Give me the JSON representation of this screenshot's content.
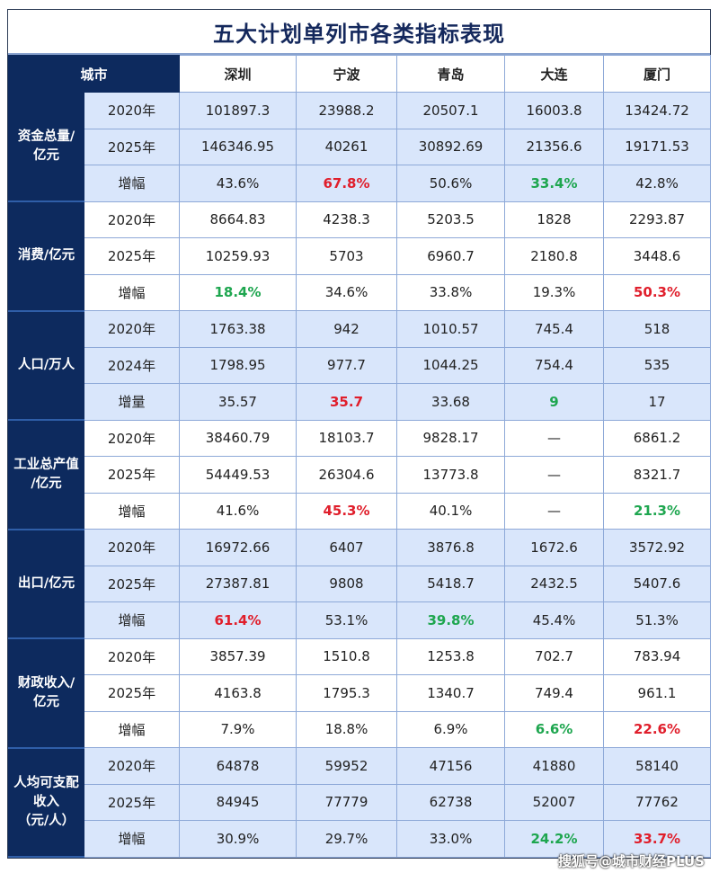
{
  "title": "五大计划单列市各类指标表现",
  "header": {
    "city_label": "城市",
    "cities": [
      "深圳",
      "宁波",
      "青岛",
      "大连",
      "厦门"
    ]
  },
  "colors": {
    "category_bg": "#0d2a5e",
    "band_blue": "#d9e6fb",
    "highlight_red": "#e01e2b",
    "highlight_green": "#1ea64f"
  },
  "groups": [
    {
      "label": "资金总量/\n亿元",
      "rows": [
        {
          "label": "2020年",
          "values": [
            "101897.3",
            "23988.2",
            "20507.1",
            "16003.8",
            "13424.72"
          ],
          "highlights": [
            "",
            "",
            "",
            "",
            ""
          ]
        },
        {
          "label": "2025年",
          "values": [
            "146346.95",
            "40261",
            "30892.69",
            "21356.6",
            "19171.53"
          ],
          "highlights": [
            "",
            "",
            "",
            "",
            ""
          ]
        },
        {
          "label": "增幅",
          "values": [
            "43.6%",
            "67.8%",
            "50.6%",
            "33.4%",
            "42.8%"
          ],
          "highlights": [
            "",
            "red",
            "",
            "green",
            ""
          ]
        }
      ]
    },
    {
      "label": "消费/亿元",
      "rows": [
        {
          "label": "2020年",
          "values": [
            "8664.83",
            "4238.3",
            "5203.5",
            "1828",
            "2293.87"
          ],
          "highlights": [
            "",
            "",
            "",
            "",
            ""
          ]
        },
        {
          "label": "2025年",
          "values": [
            "10259.93",
            "5703",
            "6960.7",
            "2180.8",
            "3448.6"
          ],
          "highlights": [
            "",
            "",
            "",
            "",
            ""
          ]
        },
        {
          "label": "增幅",
          "values": [
            "18.4%",
            "34.6%",
            "33.8%",
            "19.3%",
            "50.3%"
          ],
          "highlights": [
            "green",
            "",
            "",
            "",
            "red"
          ]
        }
      ]
    },
    {
      "label": "人口/万人",
      "rows": [
        {
          "label": "2020年",
          "values": [
            "1763.38",
            "942",
            "1010.57",
            "745.4",
            "518"
          ],
          "highlights": [
            "",
            "",
            "",
            "",
            ""
          ]
        },
        {
          "label": "2024年",
          "values": [
            "1798.95",
            "977.7",
            "1044.25",
            "754.4",
            "535"
          ],
          "highlights": [
            "",
            "",
            "",
            "",
            ""
          ]
        },
        {
          "label": "增量",
          "values": [
            "35.57",
            "35.7",
            "33.68",
            "9",
            "17"
          ],
          "highlights": [
            "",
            "red",
            "",
            "green",
            ""
          ]
        }
      ]
    },
    {
      "label": "工业总产值\n/亿元",
      "rows": [
        {
          "label": "2020年",
          "values": [
            "38460.79",
            "18103.7",
            "9828.17",
            "—",
            "6861.2"
          ],
          "highlights": [
            "",
            "",
            "",
            "",
            ""
          ]
        },
        {
          "label": "2025年",
          "values": [
            "54449.53",
            "26304.6",
            "13773.8",
            "—",
            "8321.7"
          ],
          "highlights": [
            "",
            "",
            "",
            "",
            ""
          ]
        },
        {
          "label": "增幅",
          "values": [
            "41.6%",
            "45.3%",
            "40.1%",
            "—",
            "21.3%"
          ],
          "highlights": [
            "",
            "red",
            "",
            "",
            "green"
          ]
        }
      ]
    },
    {
      "label": "出口/亿元",
      "rows": [
        {
          "label": "2020年",
          "values": [
            "16972.66",
            "6407",
            "3876.8",
            "1672.6",
            "3572.92"
          ],
          "highlights": [
            "",
            "",
            "",
            "",
            ""
          ]
        },
        {
          "label": "2025年",
          "values": [
            "27387.81",
            "9808",
            "5418.7",
            "2432.5",
            "5407.6"
          ],
          "highlights": [
            "",
            "",
            "",
            "",
            ""
          ]
        },
        {
          "label": "增幅",
          "values": [
            "61.4%",
            "53.1%",
            "39.8%",
            "45.4%",
            "51.3%"
          ],
          "highlights": [
            "red",
            "",
            "green",
            "",
            ""
          ]
        }
      ]
    },
    {
      "label": "财政收入/\n亿元",
      "rows": [
        {
          "label": "2020年",
          "values": [
            "3857.39",
            "1510.8",
            "1253.8",
            "702.7",
            "783.94"
          ],
          "highlights": [
            "",
            "",
            "",
            "",
            ""
          ]
        },
        {
          "label": "2025年",
          "values": [
            "4163.8",
            "1795.3",
            "1340.7",
            "749.4",
            "961.1"
          ],
          "highlights": [
            "",
            "",
            "",
            "",
            ""
          ]
        },
        {
          "label": "增幅",
          "values": [
            "7.9%",
            "18.8%",
            "6.9%",
            "6.6%",
            "22.6%"
          ],
          "highlights": [
            "",
            "",
            "",
            "green",
            "red"
          ]
        }
      ]
    },
    {
      "label": "人均可支配\n收入\n（元/人）",
      "rows": [
        {
          "label": "2020年",
          "values": [
            "64878",
            "59952",
            "47156",
            "41880",
            "58140"
          ],
          "highlights": [
            "",
            "",
            "",
            "",
            ""
          ]
        },
        {
          "label": "2025年",
          "values": [
            "84945",
            "77779",
            "62738",
            "52007",
            "77762"
          ],
          "highlights": [
            "",
            "",
            "",
            "",
            ""
          ]
        },
        {
          "label": "增幅",
          "values": [
            "30.9%",
            "29.7%",
            "33.0%",
            "24.2%",
            "33.7%"
          ],
          "highlights": [
            "",
            "",
            "",
            "green",
            "red"
          ]
        }
      ]
    }
  ],
  "watermark": "搜狐号@城市财经PLUS"
}
